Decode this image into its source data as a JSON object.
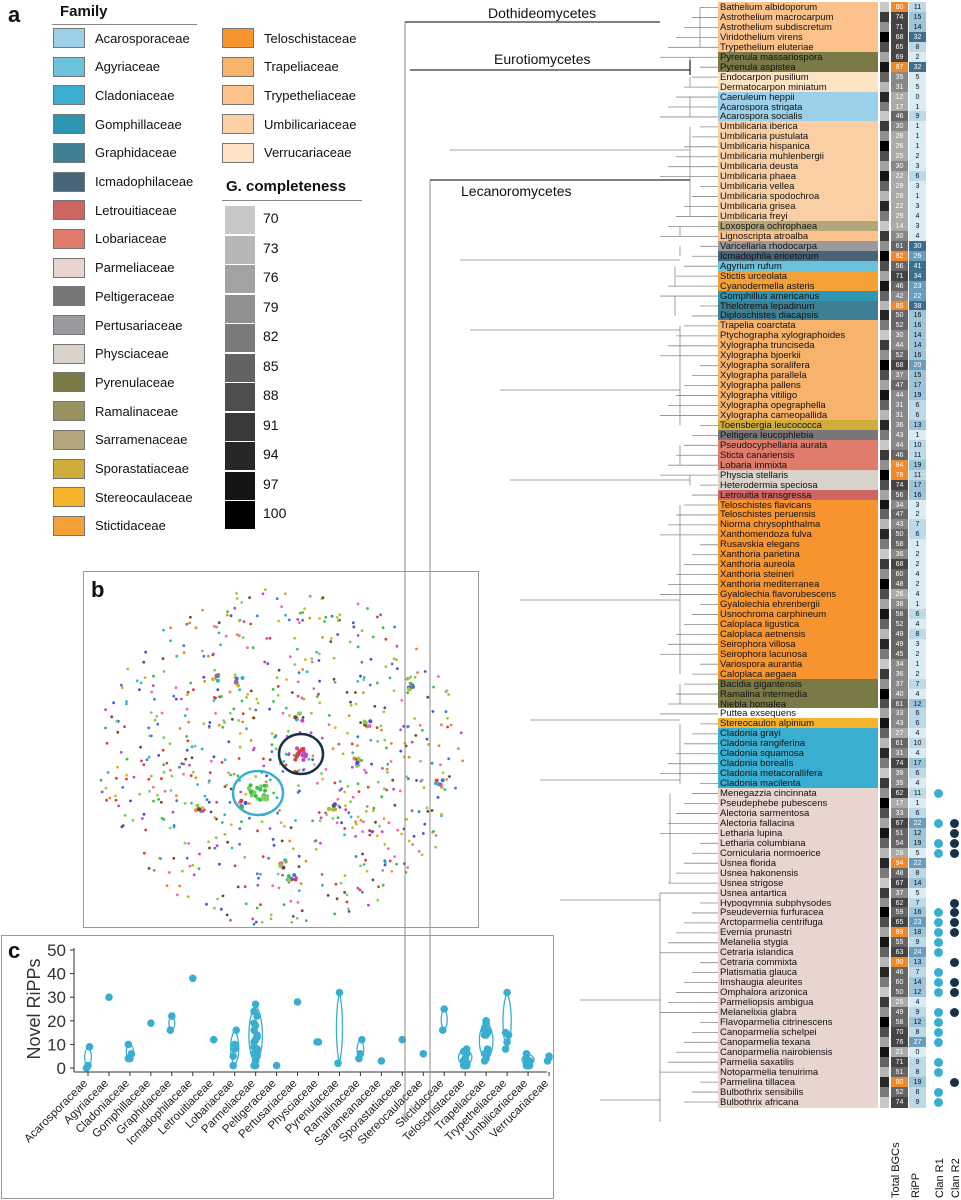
{
  "panels": {
    "a": "a",
    "b": "b",
    "c": "c"
  },
  "legend": {
    "title": "Family",
    "col1": [
      {
        "name": "Acarosporaceae",
        "color": "#9ccfe8"
      },
      {
        "name": "Agyriaceae",
        "color": "#6bc2dd"
      },
      {
        "name": "Cladoniaceae",
        "color": "#3aaed0"
      },
      {
        "name": "Gomphillaceae",
        "color": "#2e96b3"
      },
      {
        "name": "Graphidaceae",
        "color": "#3f7e93"
      },
      {
        "name": "Icmadophilaceae",
        "color": "#486477"
      },
      {
        "name": "Letrouitiaceae",
        "color": "#cd6662"
      },
      {
        "name": "Lobariaceae",
        "color": "#e07c6b"
      },
      {
        "name": "Parmeliaceae",
        "color": "#e8d5cf"
      },
      {
        "name": "Peltigeraceae",
        "color": "#777777"
      },
      {
        "name": "Pertusariaceae",
        "color": "#9a9a9e"
      },
      {
        "name": "Physciaceae",
        "color": "#d8d2cb"
      },
      {
        "name": "Pyrenulaceae",
        "color": "#7a7a46"
      },
      {
        "name": "Ramalinaceae",
        "color": "#97925f"
      },
      {
        "name": "Sarramenaceae",
        "color": "#b2a67a"
      },
      {
        "name": "Sporastatiaceae",
        "color": "#d0ad3a"
      },
      {
        "name": "Stereocaulaceae",
        "color": "#f6b22b"
      },
      {
        "name": "Stictidaceae",
        "color": "#f3a136"
      }
    ],
    "col2": [
      {
        "name": "Teloschistaceae",
        "color": "#f7942f"
      },
      {
        "name": "Trapeliaceae",
        "color": "#f7b26b"
      },
      {
        "name": "Trypetheliaceae",
        "color": "#fbc28b"
      },
      {
        "name": "Umbilicariaceae",
        "color": "#fbcfa4"
      },
      {
        "name": "Verrucariaceae",
        "color": "#fde3c4"
      }
    ]
  },
  "g_completeness": {
    "title": "G. completeness",
    "levels": [
      {
        "label": "70",
        "color": "#c8c8c8"
      },
      {
        "label": "73",
        "color": "#b6b6b6"
      },
      {
        "label": "76",
        "color": "#a3a3a3"
      },
      {
        "label": "79",
        "color": "#8f8f8f"
      },
      {
        "label": "82",
        "color": "#7a7a7a"
      },
      {
        "label": "85",
        "color": "#636363"
      },
      {
        "label": "88",
        "color": "#4e4e4e"
      },
      {
        "label": "91",
        "color": "#3a3a3a"
      },
      {
        "label": "94",
        "color": "#272727"
      },
      {
        "label": "97",
        "color": "#151515"
      },
      {
        "label": "100",
        "color": "#000000"
      }
    ]
  },
  "clades": {
    "dothideomycetes": "Dothideomycetes",
    "eurotiomycetes": "Eurotiomycetes",
    "lecanoromycetes": "Lecanoromycetes"
  },
  "columns": {
    "bgc": "Total BGCs",
    "ripp": "RiPP",
    "clan_r1": "Clan R1",
    "clan_r2": "Clan R2"
  },
  "species": [
    [
      "Bathelium albidoporum",
      "#fbc28b",
      "80",
      "11",
      0,
      0
    ],
    [
      "Astrothelium macrocarpum",
      "#fbc28b",
      "74",
      "15",
      0,
      0
    ],
    [
      "Astrothelium subdiscretum",
      "#fbc28b",
      "71",
      "14",
      0,
      0
    ],
    [
      "Viridothelium virens",
      "#fbc28b",
      "68",
      "32",
      0,
      0
    ],
    [
      "Trypethelium eluteriae",
      "#fbc28b",
      "65",
      "8",
      0,
      0
    ],
    [
      "Pyrenula massariospora",
      "#7a7a46",
      "69",
      "2",
      0,
      0
    ],
    [
      "Pyrenula aspistea",
      "#7a7a46",
      "87",
      "32",
      0,
      0
    ],
    [
      "Endocarpon pusilium",
      "#fde3c4",
      "35",
      "5",
      0,
      0
    ],
    [
      "Dermatocarpon miniatum",
      "#fde3c4",
      "31",
      "5",
      0,
      0
    ],
    [
      "Caeruleum heppii",
      "#9ccfe8",
      "12",
      "0",
      0,
      0
    ],
    [
      "Acarospora strigata",
      "#9ccfe8",
      "17",
      "1",
      0,
      0
    ],
    [
      "Acarospora socialis",
      "#9ccfe8",
      "46",
      "9",
      0,
      0
    ],
    [
      "Umbilicaria iberica",
      "#fbcfa4",
      "30",
      "1",
      0,
      0
    ],
    [
      "Umbilicaria pustulata",
      "#fbcfa4",
      "28",
      "1",
      0,
      0
    ],
    [
      "Umbilicaria hispanica",
      "#fbcfa4",
      "26",
      "1",
      0,
      0
    ],
    [
      "Umbilicaria muhlenbergii",
      "#fbcfa4",
      "25",
      "2",
      0,
      0
    ],
    [
      "Umbilicaria deusta",
      "#fbcfa4",
      "30",
      "3",
      0,
      0
    ],
    [
      "Umbilicaria phaea",
      "#fbcfa4",
      "22",
      "6",
      0,
      0
    ],
    [
      "Umbilicaria vellea",
      "#fbcfa4",
      "29",
      "3",
      0,
      0
    ],
    [
      "Umbilicaria spodochroa",
      "#fbcfa4",
      "28",
      "1",
      0,
      0
    ],
    [
      "Umbilicaria grisea",
      "#fbcfa4",
      "22",
      "3",
      0,
      0
    ],
    [
      "Umbilicaria freyi",
      "#fbcfa4",
      "29",
      "4",
      0,
      0
    ],
    [
      "Loxospora ochrophaea",
      "#b2a67a",
      "14",
      "3",
      0,
      0
    ],
    [
      "Lignoscripta atroalba",
      "#fbc28b",
      "30",
      "4",
      0,
      0
    ],
    [
      "Varicellaria rhodocarpa",
      "#9a9a9e",
      "61",
      "30",
      0,
      0
    ],
    [
      "Icmadophila ericetorum",
      "#486477",
      "82",
      "26",
      0,
      0
    ],
    [
      "Agyrium rufum",
      "#6bc2dd",
      "56",
      "41",
      0,
      0
    ],
    [
      "Stictis urceolata",
      "#f3a136",
      "71",
      "34",
      0,
      0
    ],
    [
      "Cyanodermella asteris",
      "#f3a136",
      "46",
      "23",
      0,
      0
    ],
    [
      "Gomphillus americanus",
      "#2e96b3",
      "42",
      "22",
      0,
      0
    ],
    [
      "Thelotrema lepadinum",
      "#3f7e93",
      "85",
      "38",
      0,
      0
    ],
    [
      "Diploschistes diacapsis",
      "#3f7e93",
      "50",
      "16",
      0,
      0
    ],
    [
      "Trapelia coarctata",
      "#f7b26b",
      "52",
      "16",
      0,
      0
    ],
    [
      "Ptychographa xylographoides",
      "#f7b26b",
      "30",
      "14",
      0,
      0
    ],
    [
      "Xylographa trunciseda",
      "#f7b26b",
      "44",
      "14",
      0,
      0
    ],
    [
      "Xylographa bjoerkii",
      "#f7b26b",
      "52",
      "16",
      0,
      0
    ],
    [
      "Xylographa soralifera",
      "#f7b26b",
      "68",
      "20",
      0,
      0
    ],
    [
      "Xylographa parallela",
      "#f7b26b",
      "37",
      "15",
      0,
      0
    ],
    [
      "Xylographa pallens",
      "#f7b26b",
      "47",
      "17",
      0,
      0
    ],
    [
      "Xylographa vitiligo",
      "#f7b26b",
      "44",
      "19",
      0,
      0
    ],
    [
      "Xylographa opegraphella",
      "#f7b26b",
      "31",
      "6",
      0,
      0
    ],
    [
      "Xylographa carneopallida",
      "#f7b26b",
      "31",
      "6",
      0,
      0
    ],
    [
      "Toensbergia leucococca",
      "#d0ad3a",
      "36",
      "13",
      0,
      0
    ],
    [
      "Peltigera leucophlebia",
      "#777777",
      "43",
      "1",
      0,
      0
    ],
    [
      "Pseudocyphellaria aurata",
      "#e07c6b",
      "44",
      "10",
      0,
      0
    ],
    [
      "Sticta canariensis",
      "#e07c6b",
      "46",
      "11",
      0,
      0
    ],
    [
      "Lobaria immixta",
      "#e07c6b",
      "84",
      "19",
      0,
      0
    ],
    [
      "Physcia stellaris",
      "#d8d2cb",
      "78",
      "11",
      0,
      0
    ],
    [
      "Heterodermia speciosa",
      "#d8d2cb",
      "74",
      "17",
      0,
      0
    ],
    [
      "Letrouitia transgressa",
      "#cd6662",
      "56",
      "16",
      0,
      0
    ],
    [
      "Teloschistes flavicans",
      "#f7942f",
      "34",
      "3",
      0,
      0
    ],
    [
      "Teloschistes peruensis",
      "#f7942f",
      "47",
      "2",
      0,
      0
    ],
    [
      "Niorma chrysophthalma",
      "#f7942f",
      "43",
      "7",
      0,
      0
    ],
    [
      "Xanthomendoza fulva",
      "#f7942f",
      "50",
      "6",
      0,
      0
    ],
    [
      "Rusavskia elegans",
      "#f7942f",
      "58",
      "1",
      0,
      0
    ],
    [
      "Xanthoria parietina",
      "#f7942f",
      "36",
      "2",
      0,
      0
    ],
    [
      "Xanthoria aureola",
      "#f7942f",
      "68",
      "2",
      0,
      0
    ],
    [
      "Xanthoria steineri",
      "#f7942f",
      "60",
      "4",
      0,
      0
    ],
    [
      "Xanthoria mediterranea",
      "#f7942f",
      "48",
      "2",
      0,
      0
    ],
    [
      "Gyalolechia flavorubescens",
      "#f7942f",
      "26",
      "4",
      0,
      0
    ],
    [
      "Gyalolechia ehrenbergii",
      "#f7942f",
      "38",
      "1",
      0,
      0
    ],
    [
      "Usnochroma carphineum",
      "#f7942f",
      "58",
      "6",
      0,
      0
    ],
    [
      "Caloplaca ligustica",
      "#f7942f",
      "52",
      "4",
      0,
      0
    ],
    [
      "Caloplaca aetnensis",
      "#f7942f",
      "49",
      "8",
      0,
      0
    ],
    [
      "Seirophora villosa",
      "#f7942f",
      "49",
      "3",
      0,
      0
    ],
    [
      "Seirophora lacunosa",
      "#f7942f",
      "45",
      "2",
      0,
      0
    ],
    [
      "Variospora aurantia",
      "#f7942f",
      "34",
      "1",
      0,
      0
    ],
    [
      "Caloplaca aegaea",
      "#f7942f",
      "36",
      "2",
      0,
      0
    ],
    [
      "Bacidia gigantensis",
      "#7a7a46",
      "37",
      "7",
      0,
      0
    ],
    [
      "Ramalina intermedia",
      "#7a7a46",
      "40",
      "4",
      0,
      0
    ],
    [
      "Niebla homalea",
      "#7a7a46",
      "61",
      "12",
      0,
      0
    ],
    [
      "Puttea exsequens",
      "#ffffff",
      "33",
      "6",
      0,
      0
    ],
    [
      "Stereocaulon alpinium",
      "#f6b22b",
      "43",
      "6",
      0,
      0
    ],
    [
      "Cladonia grayi",
      "#3aaed0",
      "27",
      "4",
      0,
      0
    ],
    [
      "Cladonia rangiferina",
      "#3aaed0",
      "61",
      "10",
      0,
      0
    ],
    [
      "Cladonia squamosa",
      "#3aaed0",
      "31",
      "4",
      0,
      0
    ],
    [
      "Cladonia borealis",
      "#3aaed0",
      "74",
      "17",
      0,
      0
    ],
    [
      "Cladonia metacorallifera",
      "#3aaed0",
      "39",
      "6",
      0,
      0
    ],
    [
      "Cladonia macilenta",
      "#3aaed0",
      "35",
      "4",
      0,
      0
    ],
    [
      "Menegazzia cincinnata",
      "#e8d5cf",
      "62",
      "11",
      1,
      0
    ],
    [
      "Pseudephebe pubescens",
      "#e8d5cf",
      "17",
      "1",
      0,
      0
    ],
    [
      "Alectoria sarmentosa",
      "#e8d5cf",
      "33",
      "6",
      0,
      0
    ],
    [
      "Alectoria fallacina",
      "#e8d5cf",
      "67",
      "22",
      1,
      1
    ],
    [
      "Letharia lupina",
      "#e8d5cf",
      "51",
      "12",
      0,
      1
    ],
    [
      "Letharia columbiana",
      "#e8d5cf",
      "54",
      "19",
      1,
      1
    ],
    [
      "Cornicularia normoerice",
      "#e8d5cf",
      "28",
      "5",
      1,
      1
    ],
    [
      "Usnea florida",
      "#e8d5cf",
      "94",
      "22",
      0,
      0
    ],
    [
      "Usnea hakonensis",
      "#e8d5cf",
      "48",
      "8",
      0,
      0
    ],
    [
      "Usnea strigose",
      "#e8d5cf",
      "67",
      "14",
      0,
      0
    ],
    [
      "Usnea antartica",
      "#e8d5cf",
      "37",
      "5",
      0,
      0
    ],
    [
      "Hypogymnia subphysodes",
      "#e8d5cf",
      "62",
      "7",
      0,
      1
    ],
    [
      "Pseudevernia furfuracea",
      "#e8d5cf",
      "59",
      "16",
      1,
      1
    ],
    [
      "Arctoparmelia centrifuga",
      "#e8d5cf",
      "65",
      "23",
      1,
      1
    ],
    [
      "Evernia prunastri",
      "#e8d5cf",
      "89",
      "18",
      1,
      1
    ],
    [
      "Melanelia stygia",
      "#e8d5cf",
      "55",
      "9",
      1,
      0
    ],
    [
      "Cetraria islandica",
      "#e8d5cf",
      "63",
      "24",
      1,
      0
    ],
    [
      "Cetraria commixta",
      "#e8d5cf",
      "90",
      "13",
      0,
      1
    ],
    [
      "Platismatia glauca",
      "#e8d5cf",
      "46",
      "7",
      1,
      0
    ],
    [
      "Imshaugia aleurites",
      "#e8d5cf",
      "60",
      "14",
      1,
      1
    ],
    [
      "Omphalora arizonica",
      "#e8d5cf",
      "50",
      "12",
      1,
      1
    ],
    [
      "Parmeliopsis ambigua",
      "#e8d5cf",
      "25",
      "4",
      0,
      0
    ],
    [
      "Melanelixia glabra",
      "#e8d5cf",
      "49",
      "9",
      1,
      1
    ],
    [
      "Flavoparmelia citrinescens",
      "#e8d5cf",
      "58",
      "12",
      1,
      0
    ],
    [
      "Canoparmelia schelpei",
      "#e8d5cf",
      "70",
      "8",
      1,
      0
    ],
    [
      "Canoparmelia texana",
      "#e8d5cf",
      "76",
      "27",
      1,
      0
    ],
    [
      "Canoparmelia nairobiensis",
      "#e8d5cf",
      "21",
      "0",
      0,
      0
    ],
    [
      "Parmelia saxatilis",
      "#e8d5cf",
      "71",
      "9",
      1,
      0
    ],
    [
      "Notoparmelia tenuirima",
      "#e8d5cf",
      "51",
      "8",
      1,
      0
    ],
    [
      "Parmelina tillacea",
      "#e8d5cf",
      "80",
      "19",
      0,
      1
    ],
    [
      "Bulbothrix sensibilis",
      "#e8d5cf",
      "52",
      "8",
      1,
      0
    ],
    [
      "Bulbothrix africana",
      "#e8d5cf",
      "74",
      "9",
      1,
      0
    ]
  ],
  "chart_data": {
    "type": "violin",
    "ylabel": "Novel RiPPs",
    "ylim": [
      0,
      50
    ],
    "yticks": [
      "0",
      "10",
      "20",
      "30",
      "40",
      "50"
    ],
    "categories": [
      "Acarosporaceae",
      "Agyriaceae",
      "Cladoniaceae",
      "Gomphillaceae",
      "Graphidaceae",
      "Icmadophilaceae",
      "Letrouitiaceae",
      "Lobariaceae",
      "Parmeliaceae",
      "Peltigeraceae",
      "Pertusariaceae",
      "Physciaceae",
      "Pyrenulaceae",
      "Ramalinaceae",
      "Sarrameanaceae",
      "Sporastatiaceae",
      "Stereocaulaceae",
      "Stictidaceae",
      "Teloschistaceae",
      "Trapeliaceae",
      "Trypetheliaceae",
      "Umbilicariaceae",
      "Verrucariaceae"
    ],
    "points": [
      [
        0,
        1,
        9
      ],
      [
        30
      ],
      [
        4,
        4,
        6,
        10
      ],
      [
        19
      ],
      [
        16,
        22
      ],
      [
        38
      ],
      [
        12
      ],
      [
        1,
        10,
        16,
        5,
        8
      ],
      [
        1,
        3,
        5,
        6,
        7,
        8,
        9,
        12,
        14,
        16,
        18,
        22,
        24,
        27,
        7,
        9,
        12,
        13,
        19,
        8,
        8,
        11,
        1,
        6
      ],
      [
        1
      ],
      [
        28
      ],
      [
        11,
        11
      ],
      [
        2,
        32
      ],
      [
        4,
        6,
        12
      ],
      [
        3
      ],
      [
        12
      ],
      [
        6
      ],
      [
        16,
        25
      ],
      [
        1,
        2,
        2,
        3,
        4,
        6,
        7,
        1,
        2,
        2,
        4,
        8,
        3,
        2,
        1,
        2
      ],
      [
        3,
        6,
        8,
        14,
        14,
        16,
        16,
        20,
        15,
        17,
        19,
        6,
        6,
        4
      ],
      [
        8,
        11,
        14,
        15,
        32
      ],
      [
        1,
        1,
        1,
        2,
        3,
        3,
        6,
        1,
        3,
        4
      ],
      [
        3,
        5
      ]
    ]
  }
}
